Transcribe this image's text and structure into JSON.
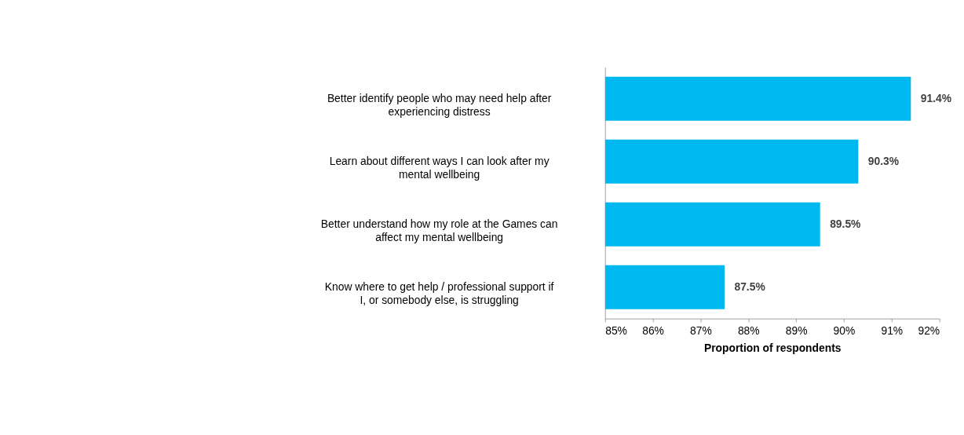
{
  "chart_data": {
    "type": "bar",
    "orientation": "horizontal",
    "categories": [
      "Better identify people who may need help after experiencing distress",
      "Learn about different ways I can look after my mental wellbeing",
      "Better understand how my role at the Games can affect my mental wellbeing",
      "Know where to get help / professional support if I, or somebody else, is struggling"
    ],
    "values": [
      91.4,
      90.3,
      89.5,
      87.5
    ],
    "value_labels": [
      "91.4%",
      "90.3%",
      "89.5%",
      "87.5%"
    ],
    "color": "#00b8f0",
    "xlim": [
      85,
      92
    ],
    "xticks": [
      {
        "value": 85,
        "label": "85%"
      },
      {
        "value": 86,
        "label": "86%"
      },
      {
        "value": 87,
        "label": "87%"
      },
      {
        "value": 88,
        "label": "88%"
      },
      {
        "value": 89,
        "label": "89%"
      },
      {
        "value": 90,
        "label": "90%"
      },
      {
        "value": 91,
        "label": "91%"
      },
      {
        "value": 92,
        "label": "92%"
      }
    ],
    "xlabel": "Proportion of respondents",
    "grid": false
  }
}
